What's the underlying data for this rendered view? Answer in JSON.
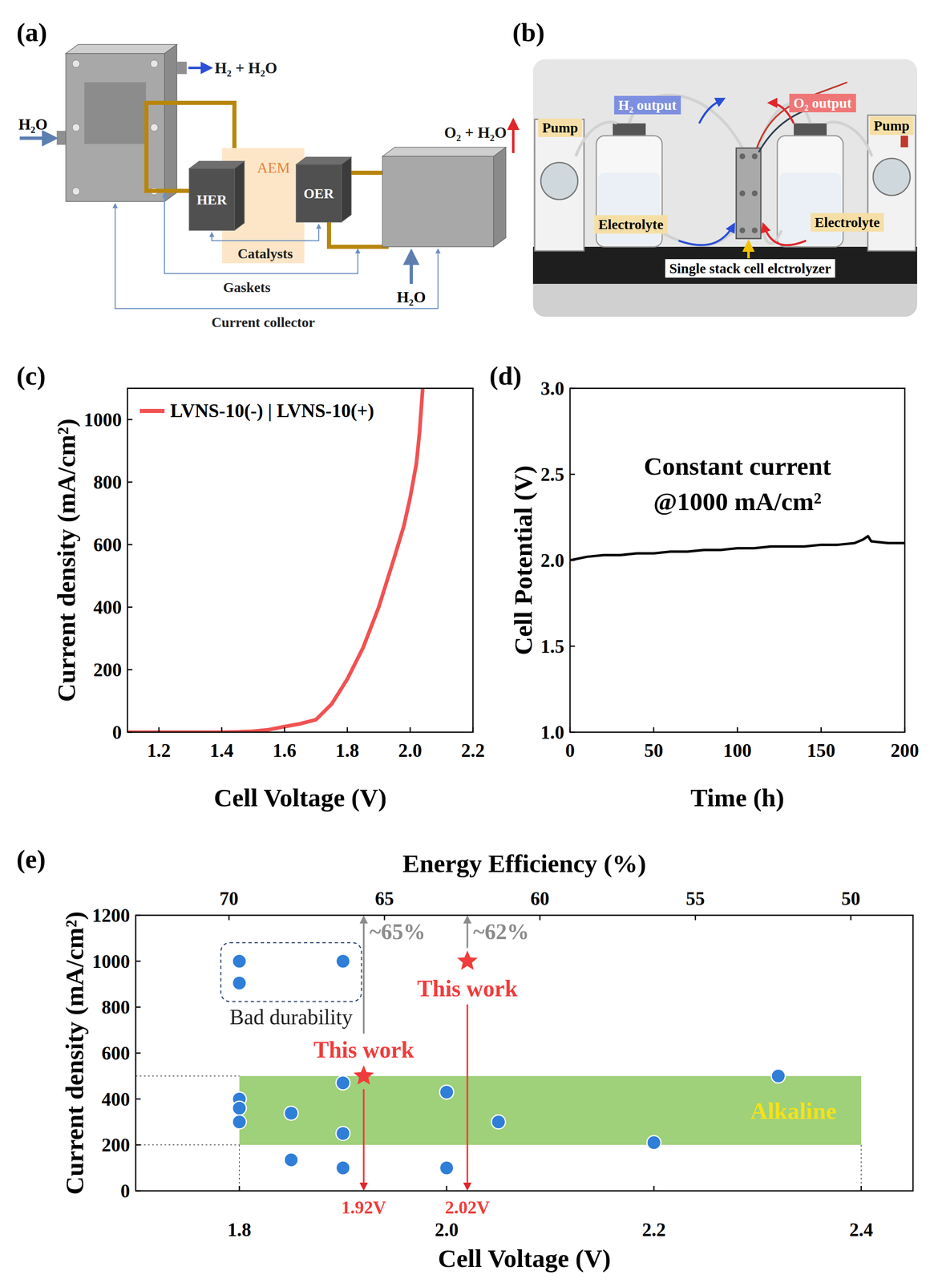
{
  "diagram": {
    "panel_label": "(a)",
    "labels": {
      "h2_outlet": "H₂ + H₂O",
      "water_inlet_left": "H₂O",
      "her": "HER",
      "aem": "AEM",
      "oer": "OER",
      "o2_outlet": "O₂ + H₂O",
      "water_inlet_right": "H₂O",
      "catalysts": "Catalysts",
      "gaskets": "Gaskets",
      "current_collector": "Current collector"
    }
  },
  "photo": {
    "panel_label": "(b)",
    "labels": {
      "pump_left": "Pump",
      "pump_right": "Pump",
      "h2_output": "H₂ output",
      "o2_output": "O₂ output",
      "electrolyte_left": "Electrolyte",
      "electrolyte_right": "Electrolyte",
      "cell": "Single stack cell elctrolyzer"
    }
  },
  "chart_data": [
    {
      "panel_label": "(c)",
      "type": "line",
      "x_label": "Cell Voltage (V)",
      "y_label": "Current density (mA/cm²)",
      "xlim": [
        1.1,
        2.2
      ],
      "xticks": [
        1.2,
        1.4,
        1.6,
        1.8,
        {
          "value": 2,
          "label": "2.0"
        },
        2.2
      ],
      "ylim": [
        0,
        1100
      ],
      "yticks": [
        0,
        200,
        400,
        600,
        800,
        1000
      ],
      "grid": false,
      "legend": "top-left",
      "x": [
        1.1,
        1.2,
        1.3,
        1.4,
        1.45,
        1.5,
        1.55,
        1.6,
        1.65,
        1.7,
        1.75,
        1.8,
        1.85,
        1.9,
        1.95,
        1.98,
        2.0,
        2.02,
        2.03,
        2.04
      ],
      "series": [
        {
          "name": "LVNS-10(-) | LVNS-10(+)",
          "color": "#f05252",
          "values": [
            0,
            0,
            0,
            0,
            1,
            3,
            8,
            18,
            27,
            40,
            90,
            170,
            270,
            400,
            560,
            660,
            750,
            860,
            960,
            1100
          ]
        }
      ]
    },
    {
      "panel_label": "(d)",
      "type": "line",
      "x_label": "Time (h)",
      "y_label": "Cell Potential (V)",
      "xlim": [
        0,
        200
      ],
      "xticks": [
        0,
        50,
        100,
        150,
        200
      ],
      "ylim": [
        1,
        3
      ],
      "yticks": [
        {
          "value": 1,
          "label": "1.0"
        },
        1.5,
        {
          "value": 2,
          "label": "2.0"
        },
        2.5,
        {
          "value": 3,
          "label": "3.0"
        }
      ],
      "grid": false,
      "annotation": [
        "Constant current",
        "@1000 mA/cm²"
      ],
      "x": [
        0,
        10,
        20,
        30,
        40,
        50,
        60,
        70,
        80,
        90,
        100,
        110,
        120,
        130,
        140,
        150,
        160,
        170,
        175,
        178,
        180,
        190,
        200
      ],
      "series": [
        {
          "color": "#000000",
          "values": [
            2.0,
            2.02,
            2.03,
            2.03,
            2.04,
            2.04,
            2.05,
            2.05,
            2.06,
            2.06,
            2.07,
            2.07,
            2.08,
            2.08,
            2.08,
            2.09,
            2.09,
            2.1,
            2.12,
            2.14,
            2.11,
            2.1,
            2.1
          ]
        }
      ]
    },
    {
      "panel_label": "(e)",
      "type": "scatter",
      "x_label": "Cell Voltage (V)",
      "y_label": "Current density (mA/cm²)",
      "x2_label": "Energy Efficiency (%)",
      "x2lim": [
        73,
        48
      ],
      "x2ticks": [
        70,
        65,
        60,
        55,
        50
      ],
      "xlim": [
        1.7,
        2.45
      ],
      "xticks": [
        1.8,
        {
          "value": 2,
          "label": "2.0"
        },
        2.2,
        2.4
      ],
      "ylim": [
        0,
        1200
      ],
      "yticks": [
        0,
        200,
        400,
        600,
        800,
        1000,
        1200
      ],
      "grid": false,
      "band": {
        "label": "Alkaline",
        "x": [
          1.8,
          2.4
        ],
        "y": [
          200,
          500
        ],
        "color": "#9fd07a"
      },
      "series": [
        {
          "color": "#2f7ed8",
          "marker": "circle",
          "annotation": "Bad durability",
          "x": [
            1.8,
            1.8,
            1.9
          ],
          "values": [
            1000,
            905,
            1000
          ]
        },
        {
          "color": "#2f7ed8",
          "marker": "circle",
          "x": [
            1.8,
            1.8,
            1.8,
            1.85,
            1.85,
            1.9,
            1.9,
            1.9,
            2.0,
            2.0,
            2.05,
            2.2,
            2.32
          ],
          "values": [
            400,
            360,
            300,
            338,
            135,
            470,
            250,
            100,
            430,
            100,
            300,
            210,
            500
          ]
        },
        {
          "color": "#f03c3c",
          "marker": "star",
          "x": [
            1.92,
            2.02
          ],
          "values": [
            500,
            1000
          ],
          "annotations": [
            "This work",
            "This work"
          ],
          "x_labels": [
            "1.92V",
            "2.02V"
          ],
          "efficiency_labels": [
            "~65%",
            "~62%"
          ]
        }
      ]
    }
  ]
}
